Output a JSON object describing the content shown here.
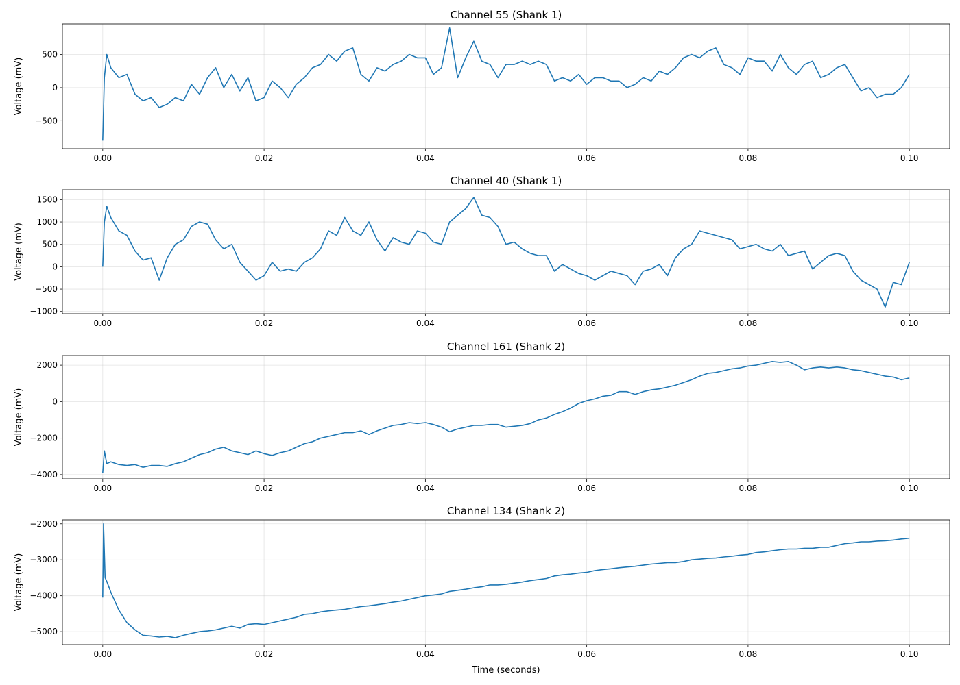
{
  "figure": {
    "line_color": "#1f77b4",
    "grid_color": "#b0b0b0",
    "xlabel": "Time (seconds)"
  },
  "chart_data": [
    {
      "type": "line",
      "title": "Channel 55 (Shank 1)",
      "xlabel": "",
      "ylabel": "Voltage (mV)",
      "xlim": [
        -0.005,
        0.105
      ],
      "ylim": [
        -920,
        960
      ],
      "xticks": [
        "0.00",
        "0.02",
        "0.04",
        "0.06",
        "0.08",
        "0.10"
      ],
      "yticks": [
        -500,
        0,
        500
      ],
      "grid": true,
      "series": [
        {
          "x": [
            0,
            0.0002,
            0.0005,
            0.001,
            0.002,
            0.003,
            0.004,
            0.005,
            0.006,
            0.007,
            0.008,
            0.009,
            0.01,
            0.011,
            0.012,
            0.013,
            0.014,
            0.015,
            0.016,
            0.017,
            0.018,
            0.019,
            0.02,
            0.021,
            0.022,
            0.023,
            0.024,
            0.025,
            0.026,
            0.027,
            0.028,
            0.029,
            0.03,
            0.031,
            0.032,
            0.033,
            0.034,
            0.035,
            0.036,
            0.037,
            0.038,
            0.039,
            0.04,
            0.041,
            0.042,
            0.043,
            0.044,
            0.045,
            0.046,
            0.047,
            0.048,
            0.049,
            0.05,
            0.051,
            0.052,
            0.053,
            0.054,
            0.055,
            0.056,
            0.057,
            0.058,
            0.059,
            0.06,
            0.061,
            0.062,
            0.063,
            0.064,
            0.065,
            0.066,
            0.067,
            0.068,
            0.069,
            0.07,
            0.071,
            0.072,
            0.073,
            0.074,
            0.075,
            0.076,
            0.077,
            0.078,
            0.079,
            0.08,
            0.081,
            0.082,
            0.083,
            0.084,
            0.085,
            0.086,
            0.087,
            0.088,
            0.089,
            0.09,
            0.091,
            0.092,
            0.093,
            0.094,
            0.095,
            0.096,
            0.097,
            0.098,
            0.099,
            0.1
          ],
          "y": [
            -800,
            150,
            500,
            300,
            150,
            200,
            -100,
            -200,
            -150,
            -300,
            -250,
            -150,
            -200,
            50,
            -100,
            150,
            300,
            0,
            200,
            -50,
            150,
            -200,
            -150,
            100,
            0,
            -150,
            50,
            150,
            300,
            350,
            500,
            400,
            550,
            600,
            200,
            100,
            300,
            250,
            350,
            400,
            500,
            450,
            450,
            200,
            300,
            900,
            150,
            450,
            700,
            400,
            350,
            150,
            350,
            350,
            400,
            350,
            400,
            350,
            100,
            150,
            100,
            200,
            50,
            150,
            150,
            100,
            100,
            0,
            50,
            150,
            100,
            250,
            200,
            300,
            450,
            500,
            450,
            550,
            600,
            350,
            300,
            200,
            450,
            400,
            400,
            250,
            500,
            300,
            200,
            350,
            400,
            150,
            200,
            300,
            350,
            150,
            -50,
            0,
            -150,
            -100,
            -100,
            0,
            200
          ]
        }
      ]
    },
    {
      "type": "line",
      "title": "Channel 40 (Shank 1)",
      "xlabel": "",
      "ylabel": "Voltage (mV)",
      "xlim": [
        -0.005,
        0.105
      ],
      "ylim": [
        -1050,
        1720
      ],
      "xticks": [
        "0.00",
        "0.02",
        "0.04",
        "0.06",
        "0.08",
        "0.10"
      ],
      "yticks": [
        -1000,
        -500,
        0,
        500,
        1000,
        1500
      ],
      "grid": true,
      "series": [
        {
          "x": [
            0,
            0.0002,
            0.0005,
            0.001,
            0.002,
            0.003,
            0.004,
            0.005,
            0.006,
            0.007,
            0.008,
            0.009,
            0.01,
            0.011,
            0.012,
            0.013,
            0.014,
            0.015,
            0.016,
            0.017,
            0.018,
            0.019,
            0.02,
            0.021,
            0.022,
            0.023,
            0.024,
            0.025,
            0.026,
            0.027,
            0.028,
            0.029,
            0.03,
            0.031,
            0.032,
            0.033,
            0.034,
            0.035,
            0.036,
            0.037,
            0.038,
            0.039,
            0.04,
            0.041,
            0.042,
            0.043,
            0.044,
            0.045,
            0.046,
            0.047,
            0.048,
            0.049,
            0.05,
            0.051,
            0.052,
            0.053,
            0.054,
            0.055,
            0.056,
            0.057,
            0.058,
            0.059,
            0.06,
            0.061,
            0.062,
            0.063,
            0.064,
            0.065,
            0.066,
            0.067,
            0.068,
            0.069,
            0.07,
            0.071,
            0.072,
            0.073,
            0.074,
            0.075,
            0.076,
            0.077,
            0.078,
            0.079,
            0.08,
            0.081,
            0.082,
            0.083,
            0.084,
            0.085,
            0.086,
            0.087,
            0.088,
            0.089,
            0.09,
            0.091,
            0.092,
            0.093,
            0.094,
            0.095,
            0.096,
            0.097,
            0.098,
            0.099,
            0.1
          ],
          "y": [
            0,
            1000,
            1350,
            1100,
            800,
            700,
            350,
            150,
            200,
            -300,
            200,
            500,
            600,
            900,
            1000,
            950,
            600,
            400,
            500,
            100,
            -100,
            -300,
            -200,
            100,
            -100,
            -50,
            -100,
            100,
            200,
            400,
            800,
            700,
            1100,
            800,
            700,
            1000,
            600,
            350,
            650,
            550,
            500,
            800,
            750,
            550,
            500,
            1000,
            1150,
            1300,
            1550,
            1150,
            1100,
            900,
            500,
            550,
            400,
            300,
            250,
            250,
            -100,
            50,
            -50,
            -150,
            -200,
            -300,
            -200,
            -100,
            -150,
            -200,
            -400,
            -100,
            -50,
            50,
            -200,
            200,
            400,
            500,
            800,
            750,
            700,
            650,
            600,
            400,
            450,
            500,
            400,
            350,
            500,
            250,
            300,
            350,
            -50,
            100,
            250,
            300,
            250,
            -100,
            -300,
            -400,
            -500,
            -900,
            -350,
            -400,
            100
          ]
        }
      ]
    },
    {
      "type": "line",
      "title": "Channel 161 (Shank 2)",
      "xlabel": "",
      "ylabel": "Voltage (mV)",
      "xlim": [
        -0.005,
        0.105
      ],
      "ylim": [
        -4230,
        2530
      ],
      "xticks": [
        "0.00",
        "0.02",
        "0.04",
        "0.06",
        "0.08",
        "0.10"
      ],
      "yticks": [
        -4000,
        -2000,
        0,
        2000
      ],
      "grid": true,
      "series": [
        {
          "x": [
            0,
            0.0002,
            0.0005,
            0.001,
            0.002,
            0.003,
            0.004,
            0.005,
            0.006,
            0.007,
            0.008,
            0.009,
            0.01,
            0.011,
            0.012,
            0.013,
            0.014,
            0.015,
            0.016,
            0.017,
            0.018,
            0.019,
            0.02,
            0.021,
            0.022,
            0.023,
            0.024,
            0.025,
            0.026,
            0.027,
            0.028,
            0.029,
            0.03,
            0.031,
            0.032,
            0.033,
            0.034,
            0.035,
            0.036,
            0.037,
            0.038,
            0.039,
            0.04,
            0.041,
            0.042,
            0.043,
            0.044,
            0.045,
            0.046,
            0.047,
            0.048,
            0.049,
            0.05,
            0.051,
            0.052,
            0.053,
            0.054,
            0.055,
            0.056,
            0.057,
            0.058,
            0.059,
            0.06,
            0.061,
            0.062,
            0.063,
            0.064,
            0.065,
            0.066,
            0.067,
            0.068,
            0.069,
            0.07,
            0.071,
            0.072,
            0.073,
            0.074,
            0.075,
            0.076,
            0.077,
            0.078,
            0.079,
            0.08,
            0.081,
            0.082,
            0.083,
            0.084,
            0.085,
            0.086,
            0.087,
            0.088,
            0.089,
            0.09,
            0.091,
            0.092,
            0.093,
            0.094,
            0.095,
            0.096,
            0.097,
            0.098,
            0.099,
            0.1
          ],
          "y": [
            -3900,
            -2700,
            -3400,
            -3300,
            -3450,
            -3500,
            -3450,
            -3600,
            -3500,
            -3500,
            -3550,
            -3400,
            -3300,
            -3100,
            -2900,
            -2800,
            -2600,
            -2500,
            -2700,
            -2800,
            -2900,
            -2700,
            -2850,
            -2950,
            -2800,
            -2700,
            -2500,
            -2300,
            -2200,
            -2000,
            -1900,
            -1800,
            -1700,
            -1700,
            -1600,
            -1800,
            -1600,
            -1450,
            -1300,
            -1250,
            -1150,
            -1200,
            -1150,
            -1250,
            -1400,
            -1650,
            -1500,
            -1400,
            -1300,
            -1300,
            -1250,
            -1250,
            -1400,
            -1350,
            -1300,
            -1200,
            -1000,
            -900,
            -700,
            -550,
            -350,
            -100,
            50,
            150,
            300,
            350,
            550,
            550,
            400,
            550,
            650,
            700,
            800,
            900,
            1050,
            1200,
            1400,
            1550,
            1600,
            1700,
            1800,
            1850,
            1950,
            2000,
            2100,
            2200,
            2150,
            2200,
            2000,
            1750,
            1850,
            1900,
            1850,
            1900,
            1850,
            1750,
            1700,
            1600,
            1500,
            1400,
            1350,
            1200,
            1300
          ]
        }
      ]
    },
    {
      "type": "line",
      "title": "Channel 134 (Shank 2)",
      "xlabel": "Time (seconds)",
      "ylabel": "Voltage (mV)",
      "xlim": [
        -0.005,
        0.105
      ],
      "ylim": [
        -5360,
        -1890
      ],
      "xticks": [
        "0.00",
        "0.02",
        "0.04",
        "0.06",
        "0.08",
        "0.10"
      ],
      "yticks": [
        -5000,
        -4000,
        -3000,
        -2000
      ],
      "grid": true,
      "series": [
        {
          "x": [
            0,
            0.0001,
            0.0003,
            0.0005,
            0.001,
            0.002,
            0.003,
            0.004,
            0.005,
            0.006,
            0.007,
            0.008,
            0.009,
            0.01,
            0.011,
            0.012,
            0.013,
            0.014,
            0.015,
            0.016,
            0.017,
            0.018,
            0.019,
            0.02,
            0.021,
            0.022,
            0.023,
            0.024,
            0.025,
            0.026,
            0.027,
            0.028,
            0.029,
            0.03,
            0.031,
            0.032,
            0.033,
            0.034,
            0.035,
            0.036,
            0.037,
            0.038,
            0.039,
            0.04,
            0.041,
            0.042,
            0.043,
            0.044,
            0.045,
            0.046,
            0.047,
            0.048,
            0.049,
            0.05,
            0.051,
            0.052,
            0.053,
            0.054,
            0.055,
            0.056,
            0.057,
            0.058,
            0.059,
            0.06,
            0.061,
            0.062,
            0.063,
            0.064,
            0.065,
            0.066,
            0.067,
            0.068,
            0.069,
            0.07,
            0.071,
            0.072,
            0.073,
            0.074,
            0.075,
            0.076,
            0.077,
            0.078,
            0.079,
            0.08,
            0.081,
            0.082,
            0.083,
            0.084,
            0.085,
            0.086,
            0.087,
            0.088,
            0.089,
            0.09,
            0.091,
            0.092,
            0.093,
            0.094,
            0.095,
            0.096,
            0.097,
            0.098,
            0.099,
            0.1
          ],
          "y": [
            -4050,
            -2000,
            -3500,
            -3600,
            -3900,
            -4400,
            -4750,
            -4950,
            -5100,
            -5120,
            -5150,
            -5130,
            -5170,
            -5100,
            -5050,
            -5000,
            -4980,
            -4950,
            -4900,
            -4850,
            -4900,
            -4800,
            -4780,
            -4800,
            -4750,
            -4700,
            -4650,
            -4600,
            -4520,
            -4500,
            -4450,
            -4420,
            -4400,
            -4380,
            -4340,
            -4300,
            -4280,
            -4250,
            -4220,
            -4180,
            -4150,
            -4100,
            -4050,
            -4000,
            -3980,
            -3950,
            -3880,
            -3850,
            -3820,
            -3780,
            -3750,
            -3700,
            -3700,
            -3680,
            -3650,
            -3620,
            -3580,
            -3550,
            -3520,
            -3450,
            -3420,
            -3400,
            -3370,
            -3350,
            -3300,
            -3270,
            -3250,
            -3220,
            -3200,
            -3180,
            -3150,
            -3120,
            -3100,
            -3080,
            -3080,
            -3050,
            -3000,
            -2980,
            -2960,
            -2950,
            -2920,
            -2900,
            -2870,
            -2850,
            -2800,
            -2780,
            -2750,
            -2720,
            -2700,
            -2700,
            -2680,
            -2680,
            -2650,
            -2650,
            -2600,
            -2550,
            -2530,
            -2500,
            -2500,
            -2480,
            -2470,
            -2450,
            -2420,
            -2400
          ]
        }
      ]
    }
  ]
}
